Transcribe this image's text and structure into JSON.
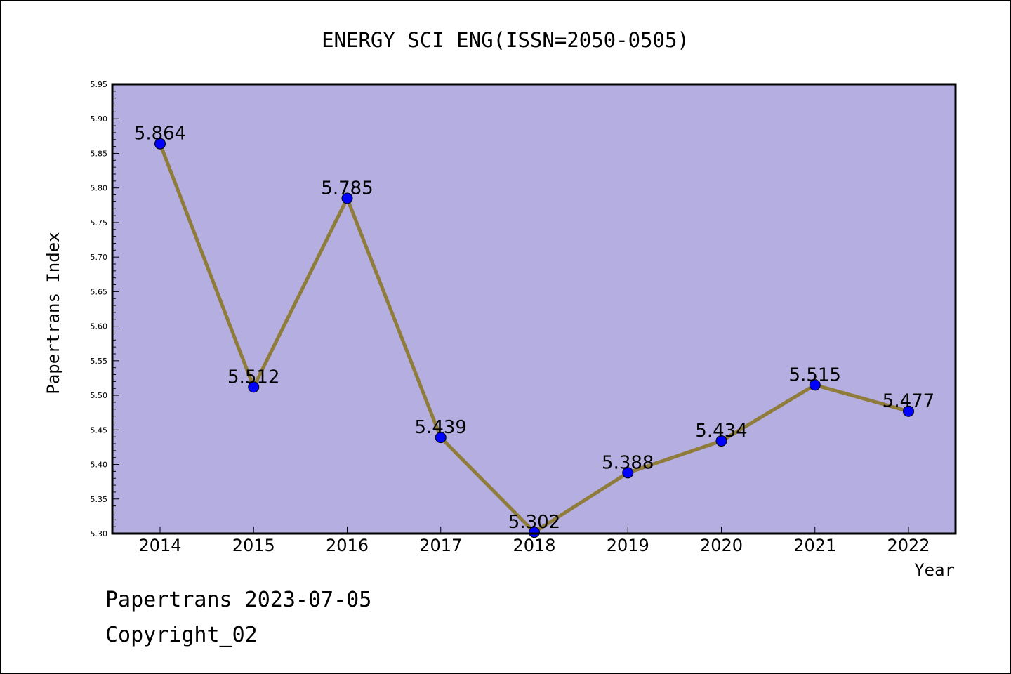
{
  "title": "ENERGY SCI ENG(ISSN=2050-0505)",
  "footer": {
    "line1": "Papertrans 2023-07-05",
    "line2": "Copyright_02"
  },
  "colors": {
    "plot_bg": "#b5aee1",
    "line": "#8f7c3a",
    "marker": "#0000ff",
    "frame": "#000000"
  },
  "chart_data": {
    "type": "line",
    "title": "ENERGY SCI ENG(ISSN=2050-0505)",
    "xlabel": "Year",
    "ylabel": "Papertrans Index",
    "categories": [
      "2014",
      "2015",
      "2016",
      "2017",
      "2018",
      "2019",
      "2020",
      "2021",
      "2022"
    ],
    "values": [
      5.864,
      5.512,
      5.785,
      5.439,
      5.302,
      5.388,
      5.434,
      5.515,
      5.477
    ],
    "data_labels": [
      "5.864",
      "5.512",
      "5.785",
      "5.439",
      "5.302",
      "5.388",
      "5.434",
      "5.515",
      "5.477"
    ],
    "ylim": [
      5.3,
      5.95
    ],
    "yticks": [
      "5.30",
      "5.35",
      "5.40",
      "5.45",
      "5.50",
      "5.55",
      "5.60",
      "5.65",
      "5.70",
      "5.75",
      "5.80",
      "5.85",
      "5.90",
      "5.95"
    ],
    "grid": false,
    "legend": "none"
  }
}
